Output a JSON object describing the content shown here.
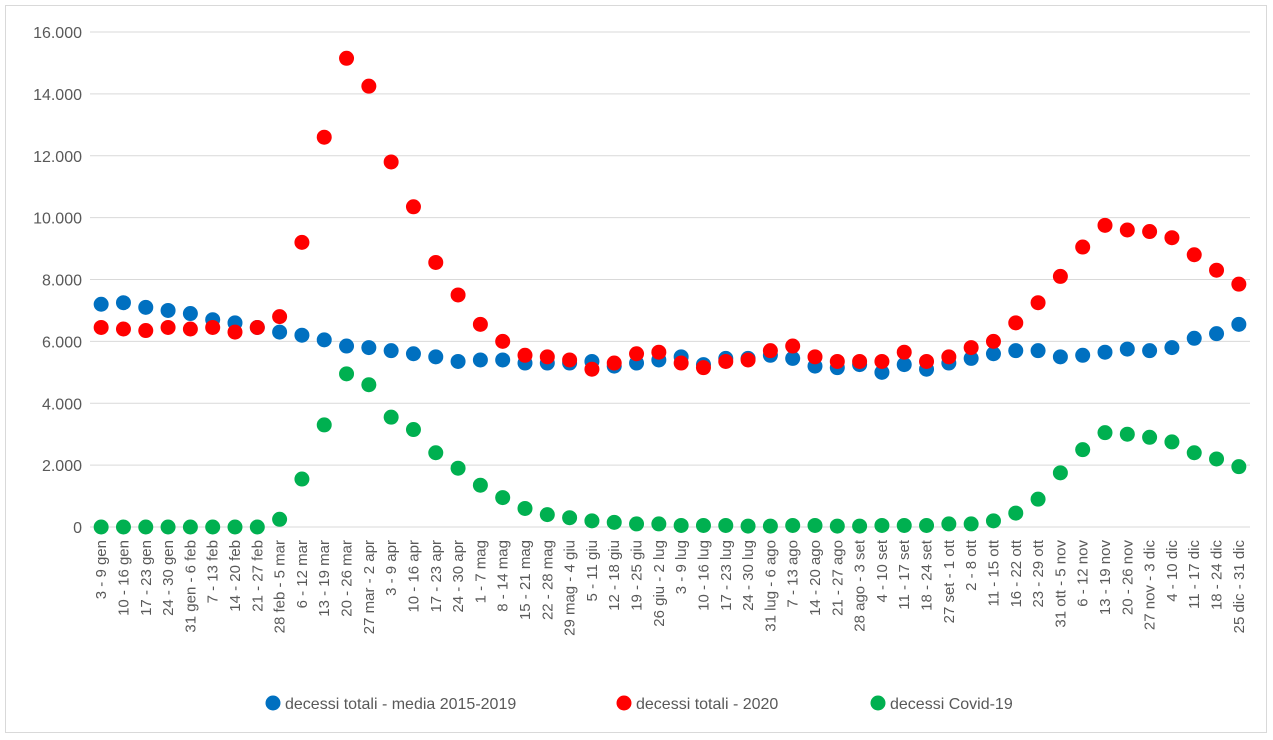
{
  "chart_data": {
    "type": "scatter",
    "title": "",
    "xlabel": "",
    "ylabel": "",
    "ylim": [
      0,
      16000
    ],
    "yticks": [
      0,
      2000,
      4000,
      6000,
      8000,
      10000,
      12000,
      14000,
      16000
    ],
    "ytick_labels": [
      "0",
      "2.000",
      "4.000",
      "6.000",
      "8.000",
      "10.000",
      "12.000",
      "14.000",
      "16.000"
    ],
    "grid": "horizontal",
    "legend_position": "bottom",
    "categories": [
      "3 - 9 gen",
      "10 - 16 gen",
      "17 - 23 gen",
      "24 - 30 gen",
      "31 gen - 6 feb",
      "7 - 13 feb",
      "14 - 20 feb",
      "21 - 27 feb",
      "28 feb - 5 mar",
      "6 - 12 mar",
      "13 - 19 mar",
      "20 - 26 mar",
      "27 mar - 2 apr",
      "3 - 9 apr",
      "10 - 16 apr",
      "17 - 23 apr",
      "24 - 30 apr",
      "1 - 7 mag",
      "8 - 14 mag",
      "15 - 21 mag",
      "22 - 28 mag",
      "29 mag - 4 giu",
      "5 - 11 giu",
      "12 - 18 giu",
      "19 - 25 giu",
      "26 giu - 2 lug",
      "3 - 9 lug",
      "10 - 16 lug",
      "17 - 23 lug",
      "24 - 30 lug",
      "31 lug - 6 ago",
      "7 - 13 ago",
      "14 - 20 ago",
      "21 - 27 ago",
      "28 ago - 3 set",
      "4 - 10 set",
      "11 - 17 set",
      "18 - 24 set",
      "27 set - 1 ott",
      "2 - 8 ott",
      "11 - 15 ott",
      "16 - 22 ott",
      "23 - 29 ott",
      "31 ott - 5 nov",
      "6 - 12 nov",
      "13 - 19 nov",
      "20 - 26 nov",
      "27 nov - 3 dic",
      "4 - 10 dic",
      "11 - 17 dic",
      "18 - 24 dic",
      "25 dic - 31 dic"
    ],
    "series": [
      {
        "name": "decessi totali - media 2015-2019",
        "color": "#0070c0",
        "values": [
          7200,
          7250,
          7100,
          7000,
          6900,
          6700,
          6600,
          6450,
          6300,
          6200,
          6050,
          5850,
          5800,
          5700,
          5600,
          5500,
          5350,
          5400,
          5400,
          5300,
          5300,
          5300,
          5350,
          5200,
          5300,
          5400,
          5500,
          5250,
          5450,
          5450,
          5550,
          5450,
          5200,
          5150,
          5250,
          5000,
          5250,
          5100,
          5300,
          5450,
          5600,
          5700,
          5700,
          5500,
          5550,
          5650,
          5750,
          5700,
          5800,
          6100,
          6250,
          6550
        ]
      },
      {
        "name": "decessi totali - 2020",
        "color": "#ff0000",
        "values": [
          6450,
          6400,
          6350,
          6450,
          6400,
          6450,
          6300,
          6450,
          6800,
          9200,
          12600,
          15150,
          14250,
          11800,
          10350,
          8550,
          7500,
          6550,
          6000,
          5550,
          5500,
          5400,
          5100,
          5300,
          5600,
          5650,
          5300,
          5150,
          5350,
          5400,
          5700,
          5850,
          5500,
          5350,
          5350,
          5350,
          5650,
          5350,
          5500,
          5800,
          6000,
          6600,
          7250,
          8100,
          9050,
          9750,
          9600,
          9550,
          9350,
          8800,
          8300,
          7850
        ]
      },
      {
        "name": "decessi Covid-19",
        "color": "#00b050",
        "values": [
          0,
          0,
          0,
          0,
          0,
          0,
          0,
          0,
          250,
          1550,
          3300,
          4950,
          4600,
          3550,
          3150,
          2400,
          1900,
          1350,
          950,
          600,
          400,
          300,
          200,
          150,
          100,
          100,
          50,
          50,
          50,
          30,
          30,
          50,
          50,
          30,
          30,
          50,
          50,
          50,
          100,
          100,
          200,
          450,
          900,
          1750,
          2500,
          3050,
          3000,
          2900,
          2750,
          2400,
          2200,
          1950
        ]
      }
    ]
  }
}
